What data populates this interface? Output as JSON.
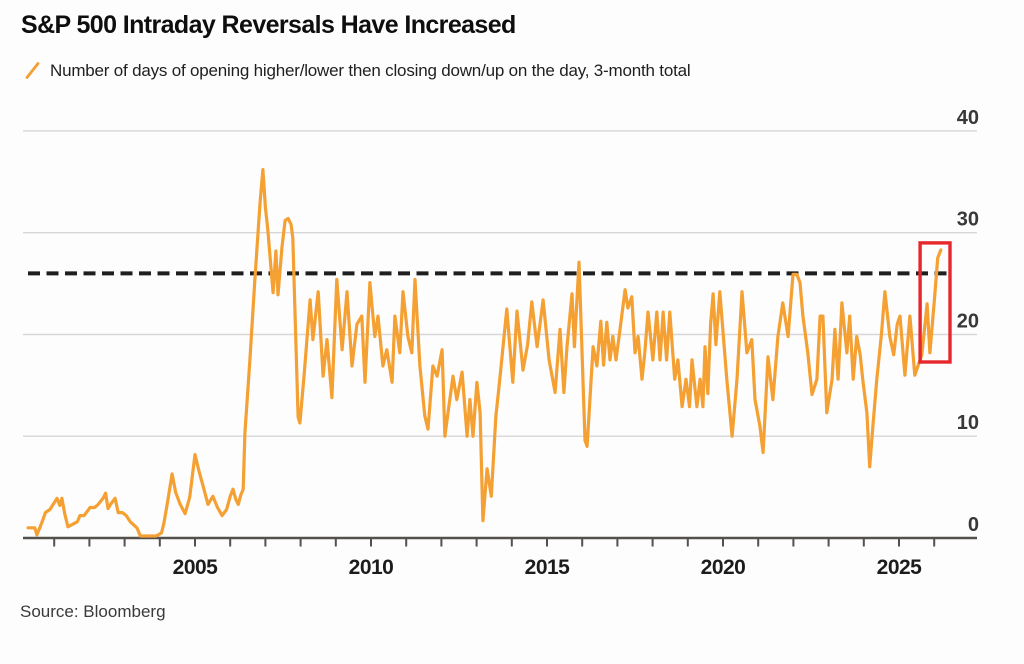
{
  "page": {
    "title": "S&P 500 Intraday Reversals Have Increased",
    "source_note": "Source: Bloomberg"
  },
  "legend": {
    "marker": "orange-slash-icon",
    "label": "Number of days of opening higher/lower then closing down/up on the day, 3-month total"
  },
  "colors": {
    "series_orange": "#F4A032",
    "highlight_red": "#E6282D",
    "reference_black": "#1E1E1E",
    "grid_gray": "#D7D7D7",
    "axis_gray": "#54514C",
    "ylabel_dark": "#383838",
    "xlabel_dark": "#1C1C1C"
  },
  "chart_data": {
    "type": "line",
    "title": "S&P 500 Intraday Reversals Have Increased",
    "ylabel": "",
    "xlabel": "",
    "legend_position": "top-left",
    "grid": "horizontal",
    "x_axis": {
      "range": [
        2000.2,
        2026.45
      ],
      "tick_every_years": 1,
      "label_ticks": [
        2005,
        2010,
        2015,
        2020,
        2025
      ]
    },
    "y_axis": {
      "range": [
        0,
        43
      ],
      "ticks": [
        0,
        10,
        20,
        30,
        40
      ],
      "side": "right",
      "grid": true
    },
    "reference_line": {
      "value": 26,
      "style": "dashed",
      "color": "#1E1E1E"
    },
    "highlight_box": {
      "x_range": [
        2025.6,
        2026.45
      ],
      "y_range": [
        17.3,
        29.0
      ],
      "color": "#E6282D"
    },
    "series": [
      {
        "name": "Number of days of opening higher/lower then closing down/up on the day, 3-month total",
        "color": "#F4A032",
        "points": [
          [
            2000.26,
            1
          ],
          [
            2000.45,
            1
          ],
          [
            2000.51,
            0.3
          ],
          [
            2000.65,
            1.5
          ],
          [
            2000.75,
            2.5
          ],
          [
            2000.88,
            2.8
          ],
          [
            2001.08,
            3.9
          ],
          [
            2001.16,
            3.2
          ],
          [
            2001.22,
            3.9
          ],
          [
            2001.3,
            2.4
          ],
          [
            2001.39,
            1.1
          ],
          [
            2001.55,
            1.4
          ],
          [
            2001.66,
            1.6
          ],
          [
            2001.73,
            2.2
          ],
          [
            2001.85,
            2.2
          ],
          [
            2002.02,
            3
          ],
          [
            2002.15,
            3
          ],
          [
            2002.25,
            3.3
          ],
          [
            2002.39,
            3.9
          ],
          [
            2002.46,
            4.4
          ],
          [
            2002.53,
            2.9
          ],
          [
            2002.62,
            3.4
          ],
          [
            2002.73,
            3.9
          ],
          [
            2002.82,
            2.5
          ],
          [
            2002.94,
            2.5
          ],
          [
            2003.05,
            2.2
          ],
          [
            2003.16,
            1.6
          ],
          [
            2003.35,
            1
          ],
          [
            2003.45,
            0.2
          ],
          [
            2003.7,
            0.2
          ],
          [
            2003.9,
            0.2
          ],
          [
            2004.05,
            0.5
          ],
          [
            2004.12,
            1.5
          ],
          [
            2004.22,
            3.5
          ],
          [
            2004.35,
            6.3
          ],
          [
            2004.45,
            4.5
          ],
          [
            2004.58,
            3.3
          ],
          [
            2004.72,
            2.4
          ],
          [
            2004.85,
            4
          ],
          [
            2005.0,
            8.2
          ],
          [
            2005.12,
            6.5
          ],
          [
            2005.23,
            5.1
          ],
          [
            2005.37,
            3.3
          ],
          [
            2005.51,
            4.1
          ],
          [
            2005.64,
            3
          ],
          [
            2005.77,
            2.2
          ],
          [
            2005.9,
            2.8
          ],
          [
            2006.0,
            4.1
          ],
          [
            2006.08,
            4.8
          ],
          [
            2006.16,
            3.8
          ],
          [
            2006.23,
            3.3
          ],
          [
            2006.3,
            4.2
          ],
          [
            2006.37,
            4.8
          ],
          [
            2006.42,
            10.3
          ],
          [
            2006.56,
            17.5
          ],
          [
            2006.7,
            25.3
          ],
          [
            2006.85,
            33
          ],
          [
            2006.93,
            36.2
          ],
          [
            2007.0,
            32.5
          ],
          [
            2007.07,
            30.3
          ],
          [
            2007.15,
            27
          ],
          [
            2007.22,
            24.1
          ],
          [
            2007.3,
            28.2
          ],
          [
            2007.36,
            23.9
          ],
          [
            2007.47,
            28.5
          ],
          [
            2007.56,
            31.2
          ],
          [
            2007.65,
            31.4
          ],
          [
            2007.73,
            30.8
          ],
          [
            2007.78,
            29.5
          ],
          [
            2007.93,
            11.9
          ],
          [
            2007.98,
            11.3
          ],
          [
            2008.1,
            16
          ],
          [
            2008.27,
            23.4
          ],
          [
            2008.35,
            19.5
          ],
          [
            2008.5,
            24.2
          ],
          [
            2008.64,
            15.9
          ],
          [
            2008.75,
            19.5
          ],
          [
            2008.89,
            13.8
          ],
          [
            2009.03,
            25.4
          ],
          [
            2009.18,
            18.5
          ],
          [
            2009.32,
            24.2
          ],
          [
            2009.46,
            16.9
          ],
          [
            2009.6,
            21
          ],
          [
            2009.74,
            21.8
          ],
          [
            2009.83,
            15.3
          ],
          [
            2009.97,
            25.1
          ],
          [
            2010.11,
            19.8
          ],
          [
            2010.2,
            21.8
          ],
          [
            2010.34,
            16.9
          ],
          [
            2010.45,
            18.5
          ],
          [
            2010.6,
            15.3
          ],
          [
            2010.68,
            21.8
          ],
          [
            2010.82,
            18.2
          ],
          [
            2010.91,
            24.2
          ],
          [
            2011.05,
            19.8
          ],
          [
            2011.16,
            18.2
          ],
          [
            2011.25,
            25.4
          ],
          [
            2011.39,
            16.9
          ],
          [
            2011.53,
            12
          ],
          [
            2011.62,
            10.7
          ],
          [
            2011.76,
            16.9
          ],
          [
            2011.88,
            15.9
          ],
          [
            2012.02,
            18.5
          ],
          [
            2012.1,
            10
          ],
          [
            2012.19,
            12.3
          ],
          [
            2012.33,
            15.9
          ],
          [
            2012.44,
            13.6
          ],
          [
            2012.59,
            16.3
          ],
          [
            2012.73,
            10
          ],
          [
            2012.81,
            13.6
          ],
          [
            2012.9,
            10
          ],
          [
            2013.01,
            15.3
          ],
          [
            2013.1,
            12.3
          ],
          [
            2013.18,
            1.7
          ],
          [
            2013.3,
            6.8
          ],
          [
            2013.42,
            4.1
          ],
          [
            2013.55,
            12
          ],
          [
            2013.66,
            15.6
          ],
          [
            2013.86,
            22.5
          ],
          [
            2014.03,
            15.3
          ],
          [
            2014.15,
            22.3
          ],
          [
            2014.32,
            16.5
          ],
          [
            2014.45,
            19
          ],
          [
            2014.57,
            23.2
          ],
          [
            2014.72,
            18.8
          ],
          [
            2014.89,
            23.4
          ],
          [
            2015.06,
            17.5
          ],
          [
            2015.23,
            14.3
          ],
          [
            2015.37,
            20.5
          ],
          [
            2015.48,
            14.3
          ],
          [
            2015.57,
            18.8
          ],
          [
            2015.71,
            24
          ],
          [
            2015.78,
            18.8
          ],
          [
            2015.91,
            27.1
          ],
          [
            2016.08,
            9.6
          ],
          [
            2016.14,
            9
          ],
          [
            2016.31,
            18.8
          ],
          [
            2016.42,
            16.9
          ],
          [
            2016.53,
            21.3
          ],
          [
            2016.61,
            17
          ],
          [
            2016.7,
            21.2
          ],
          [
            2016.79,
            17.5
          ],
          [
            2016.87,
            19.8
          ],
          [
            2016.96,
            17.5
          ],
          [
            2017.05,
            19.8
          ],
          [
            2017.22,
            24.4
          ],
          [
            2017.3,
            22.6
          ],
          [
            2017.41,
            23.7
          ],
          [
            2017.5,
            18.2
          ],
          [
            2017.59,
            19.8
          ],
          [
            2017.7,
            15.6
          ],
          [
            2017.78,
            18.2
          ],
          [
            2017.87,
            22.2
          ],
          [
            2018.01,
            17.5
          ],
          [
            2018.12,
            22.2
          ],
          [
            2018.21,
            17.5
          ],
          [
            2018.3,
            22.2
          ],
          [
            2018.4,
            17.5
          ],
          [
            2018.49,
            22.2
          ],
          [
            2018.63,
            15.6
          ],
          [
            2018.72,
            17.5
          ],
          [
            2018.84,
            12.9
          ],
          [
            2018.95,
            15.6
          ],
          [
            2019.05,
            12.9
          ],
          [
            2019.12,
            17.5
          ],
          [
            2019.26,
            12.9
          ],
          [
            2019.35,
            15.6
          ],
          [
            2019.43,
            12.9
          ],
          [
            2019.49,
            18.8
          ],
          [
            2019.57,
            14.2
          ],
          [
            2019.65,
            21
          ],
          [
            2019.72,
            24
          ],
          [
            2019.8,
            19
          ],
          [
            2019.91,
            24.2
          ],
          [
            2020.11,
            15.6
          ],
          [
            2020.26,
            10
          ],
          [
            2020.4,
            15.6
          ],
          [
            2020.54,
            24.2
          ],
          [
            2020.68,
            18.2
          ],
          [
            2020.82,
            19.5
          ],
          [
            2020.91,
            13.6
          ],
          [
            2021.05,
            11
          ],
          [
            2021.14,
            8.4
          ],
          [
            2021.28,
            17.8
          ],
          [
            2021.42,
            13.6
          ],
          [
            2021.56,
            19.8
          ],
          [
            2021.7,
            23.1
          ],
          [
            2021.85,
            19.8
          ],
          [
            2021.99,
            25.9
          ],
          [
            2022.1,
            25.9
          ],
          [
            2022.19,
            25.1
          ],
          [
            2022.27,
            21.8
          ],
          [
            2022.41,
            18.2
          ],
          [
            2022.53,
            14.1
          ],
          [
            2022.67,
            15.6
          ],
          [
            2022.76,
            21.8
          ],
          [
            2022.84,
            21.8
          ],
          [
            2022.95,
            12.3
          ],
          [
            2023.1,
            15.6
          ],
          [
            2023.18,
            20.5
          ],
          [
            2023.27,
            15.6
          ],
          [
            2023.38,
            23.1
          ],
          [
            2023.52,
            18.2
          ],
          [
            2023.6,
            21.8
          ],
          [
            2023.7,
            15.6
          ],
          [
            2023.8,
            19.8
          ],
          [
            2023.9,
            18
          ],
          [
            2023.97,
            15.6
          ],
          [
            2024.09,
            12.3
          ],
          [
            2024.17,
            7
          ],
          [
            2024.26,
            11
          ],
          [
            2024.37,
            15.6
          ],
          [
            2024.5,
            20
          ],
          [
            2024.6,
            24.2
          ],
          [
            2024.74,
            19.8
          ],
          [
            2024.85,
            18
          ],
          [
            2024.95,
            21
          ],
          [
            2025.03,
            21.8
          ],
          [
            2025.17,
            16
          ],
          [
            2025.31,
            21.8
          ],
          [
            2025.45,
            16
          ],
          [
            2025.65,
            18
          ],
          [
            2025.8,
            23
          ],
          [
            2025.88,
            18.2
          ],
          [
            2026.02,
            24
          ],
          [
            2026.1,
            27.5
          ],
          [
            2026.19,
            28.3
          ]
        ]
      }
    ]
  }
}
